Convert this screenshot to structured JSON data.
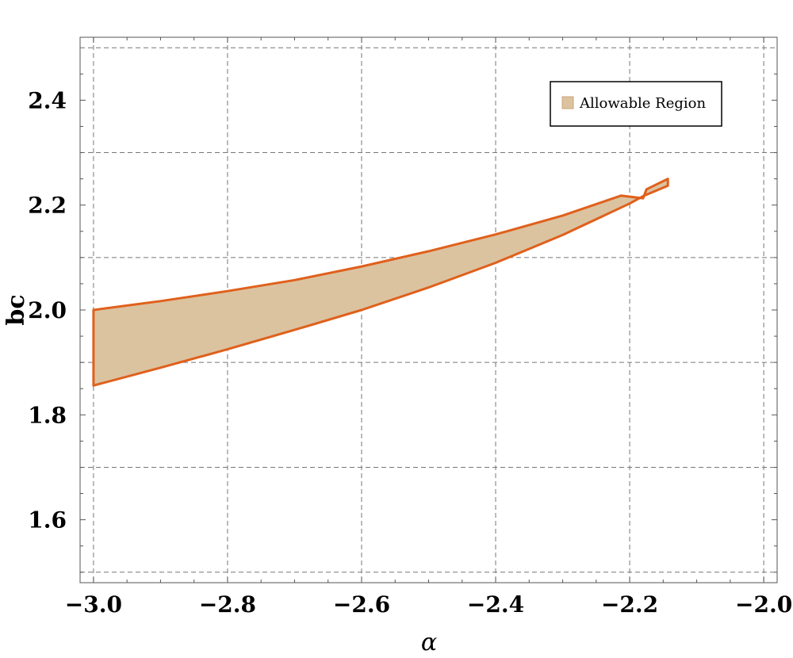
{
  "chart_data": {
    "type": "area",
    "xlabel": "α",
    "ylabel": "bc",
    "xlim": [
      -3.02,
      -1.98
    ],
    "ylim": [
      1.48,
      2.52
    ],
    "x_ticks": [
      -3.0,
      -2.8,
      -2.6,
      -2.4,
      -2.2,
      -2.0
    ],
    "x_tick_labels": [
      "−3.0",
      "−2.8",
      "−2.6",
      "−2.4",
      "−2.2",
      "−2.0"
    ],
    "y_ticks": [
      1.6,
      1.8,
      2.0,
      2.2,
      2.4
    ],
    "y_tick_labels": [
      "1.6",
      "1.8",
      "2.0",
      "2.2",
      "2.4"
    ],
    "grid": true,
    "grid_x": [
      -3.0,
      -2.8,
      -2.6,
      -2.4,
      -2.2,
      -2.0
    ],
    "grid_y": [
      1.5,
      1.7,
      1.9,
      2.1,
      2.3,
      2.5
    ],
    "legend": {
      "label": "Allowable Region",
      "placement": "top-right"
    },
    "colors": {
      "fill": "#dbc3a0",
      "stroke": "#e0601c",
      "grid": "#777777",
      "frame": "#555555"
    },
    "region": {
      "name": "Allowable Region",
      "boundary": [
        [
          -3.0,
          1.856
        ],
        [
          -2.9,
          1.89
        ],
        [
          -2.8,
          1.925
        ],
        [
          -2.7,
          1.962
        ],
        [
          -2.6,
          2.0
        ],
        [
          -2.5,
          2.043
        ],
        [
          -2.4,
          2.09
        ],
        [
          -2.3,
          2.143
        ],
        [
          -2.2,
          2.203
        ],
        [
          -2.18,
          2.217
        ],
        [
          -2.143,
          2.237
        ],
        [
          -2.143,
          2.25
        ],
        [
          -2.175,
          2.23
        ],
        [
          -2.18,
          2.213
        ],
        [
          -2.213,
          2.218
        ],
        [
          -2.3,
          2.18
        ],
        [
          -2.4,
          2.144
        ],
        [
          -2.5,
          2.112
        ],
        [
          -2.6,
          2.083
        ],
        [
          -2.7,
          2.057
        ],
        [
          -2.8,
          2.036
        ],
        [
          -2.9,
          2.017
        ],
        [
          -3.0,
          2.0
        ]
      ]
    }
  }
}
